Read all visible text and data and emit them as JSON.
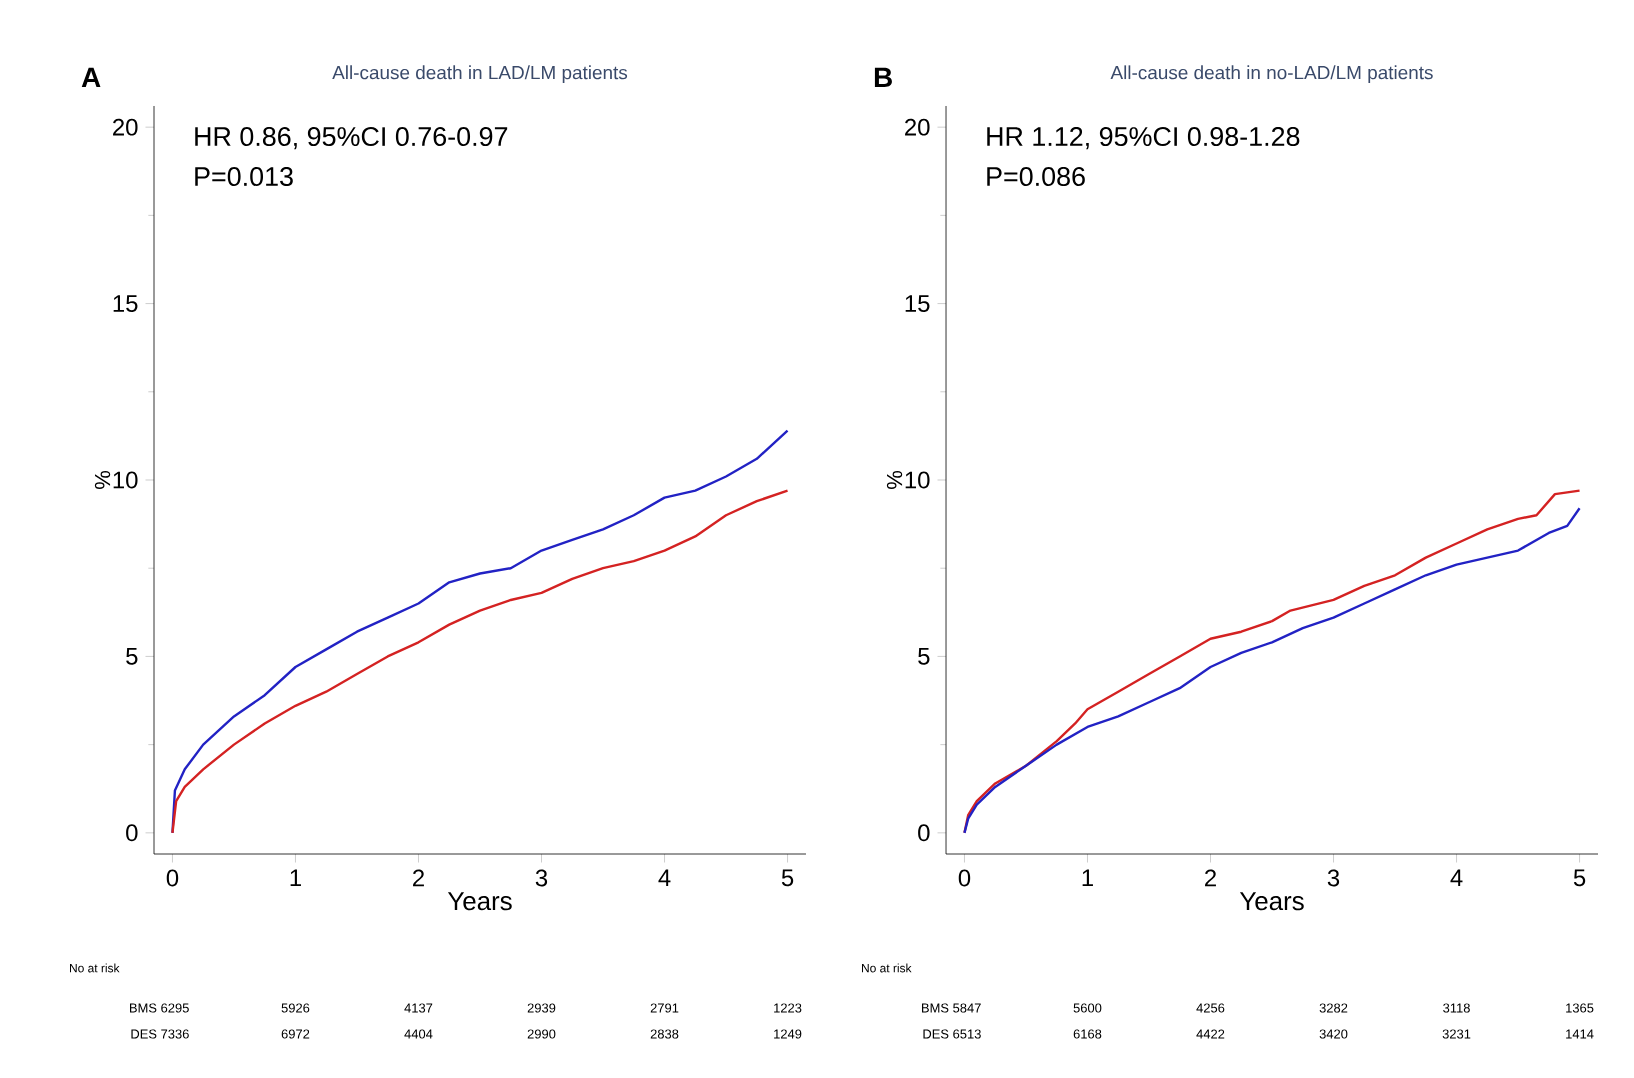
{
  "chart_data": [
    {
      "type": "line",
      "title": "All-cause death in LAD/LM patients",
      "xlabel": "Years",
      "ylabel": "%",
      "xlim": [
        -0.15,
        5.15
      ],
      "xticks": [
        0,
        1,
        2,
        3,
        4,
        5
      ],
      "ylim": [
        -0.6,
        20.6
      ],
      "yticks": [
        0,
        5,
        10,
        15,
        20
      ],
      "grid": false,
      "annotations": [
        "A",
        "HR 0.86, 95%CI 0.76-0.97",
        "P=0.013",
        "No at risk",
        "BMS 6295",
        "5926",
        "4137",
        "2939",
        "2791",
        "1223",
        "DES 7336",
        "6972",
        "4404",
        "2990",
        "2838",
        "1249"
      ],
      "series": [
        {
          "color": "#2222c4",
          "x": [
            0,
            0.02,
            0.1,
            0.25,
            0.5,
            0.75,
            1,
            1.25,
            1.5,
            1.75,
            2,
            2.25,
            2.5,
            2.75,
            3,
            3.25,
            3.5,
            3.75,
            4,
            4.25,
            4.5,
            4.75,
            5
          ],
          "values": [
            0,
            1.2,
            1.8,
            2.5,
            3.3,
            3.9,
            4.7,
            5.2,
            5.7,
            6.1,
            6.5,
            7.1,
            7.35,
            7.5,
            8.0,
            8.3,
            8.6,
            9.0,
            9.5,
            9.7,
            10.1,
            10.6,
            11.4
          ]
        },
        {
          "color": "#d42222",
          "x": [
            0,
            0.03,
            0.1,
            0.25,
            0.5,
            0.75,
            1,
            1.25,
            1.5,
            1.75,
            2,
            2.25,
            2.5,
            2.75,
            3,
            3.25,
            3.5,
            3.75,
            4,
            4.25,
            4.5,
            4.75,
            5
          ],
          "values": [
            0,
            0.9,
            1.3,
            1.8,
            2.5,
            3.1,
            3.6,
            4.0,
            4.5,
            5.0,
            5.4,
            5.9,
            6.3,
            6.6,
            6.8,
            7.2,
            7.5,
            7.7,
            8.0,
            8.4,
            9.0,
            9.4,
            9.7
          ]
        }
      ]
    },
    {
      "type": "line",
      "title": "All-cause death in no-LAD/LM patients",
      "xlabel": "Years",
      "ylabel": "%",
      "xlim": [
        -0.15,
        5.15
      ],
      "xticks": [
        0,
        1,
        2,
        3,
        4,
        5
      ],
      "ylim": [
        -0.6,
        20.6
      ],
      "yticks": [
        0,
        5,
        10,
        15,
        20
      ],
      "grid": false,
      "annotations": [
        "B",
        "HR 1.12, 95%CI 0.98-1.28",
        "P=0.086",
        "No at risk",
        "BMS 5847",
        "5600",
        "4256",
        "3282",
        "3118",
        "1365",
        "DES 6513",
        "6168",
        "4422",
        "3420",
        "3231",
        "1414"
      ],
      "series": [
        {
          "color": "#d42222",
          "x": [
            0,
            0.03,
            0.1,
            0.25,
            0.5,
            0.75,
            0.9,
            1,
            1.25,
            1.5,
            1.75,
            2,
            2.25,
            2.5,
            2.65,
            3,
            3.25,
            3.5,
            3.75,
            4,
            4.25,
            4.5,
            4.65,
            4.8,
            5
          ],
          "values": [
            0,
            0.5,
            0.9,
            1.4,
            1.9,
            2.6,
            3.1,
            3.5,
            4.0,
            4.5,
            5.0,
            5.5,
            5.7,
            6.0,
            6.3,
            6.6,
            7.0,
            7.3,
            7.8,
            8.2,
            8.6,
            8.9,
            9.0,
            9.6,
            9.7
          ]
        },
        {
          "color": "#2222c4",
          "x": [
            0,
            0.03,
            0.1,
            0.25,
            0.5,
            0.75,
            1,
            1.25,
            1.5,
            1.75,
            2,
            2.25,
            2.5,
            2.75,
            3,
            3.25,
            3.5,
            3.75,
            4,
            4.25,
            4.5,
            4.75,
            4.9,
            5
          ],
          "values": [
            0,
            0.4,
            0.8,
            1.3,
            1.9,
            2.5,
            3.0,
            3.3,
            3.7,
            4.1,
            4.7,
            5.1,
            5.4,
            5.8,
            6.1,
            6.5,
            6.9,
            7.3,
            7.6,
            7.8,
            8.0,
            8.5,
            8.7,
            9.2
          ]
        }
      ]
    }
  ]
}
